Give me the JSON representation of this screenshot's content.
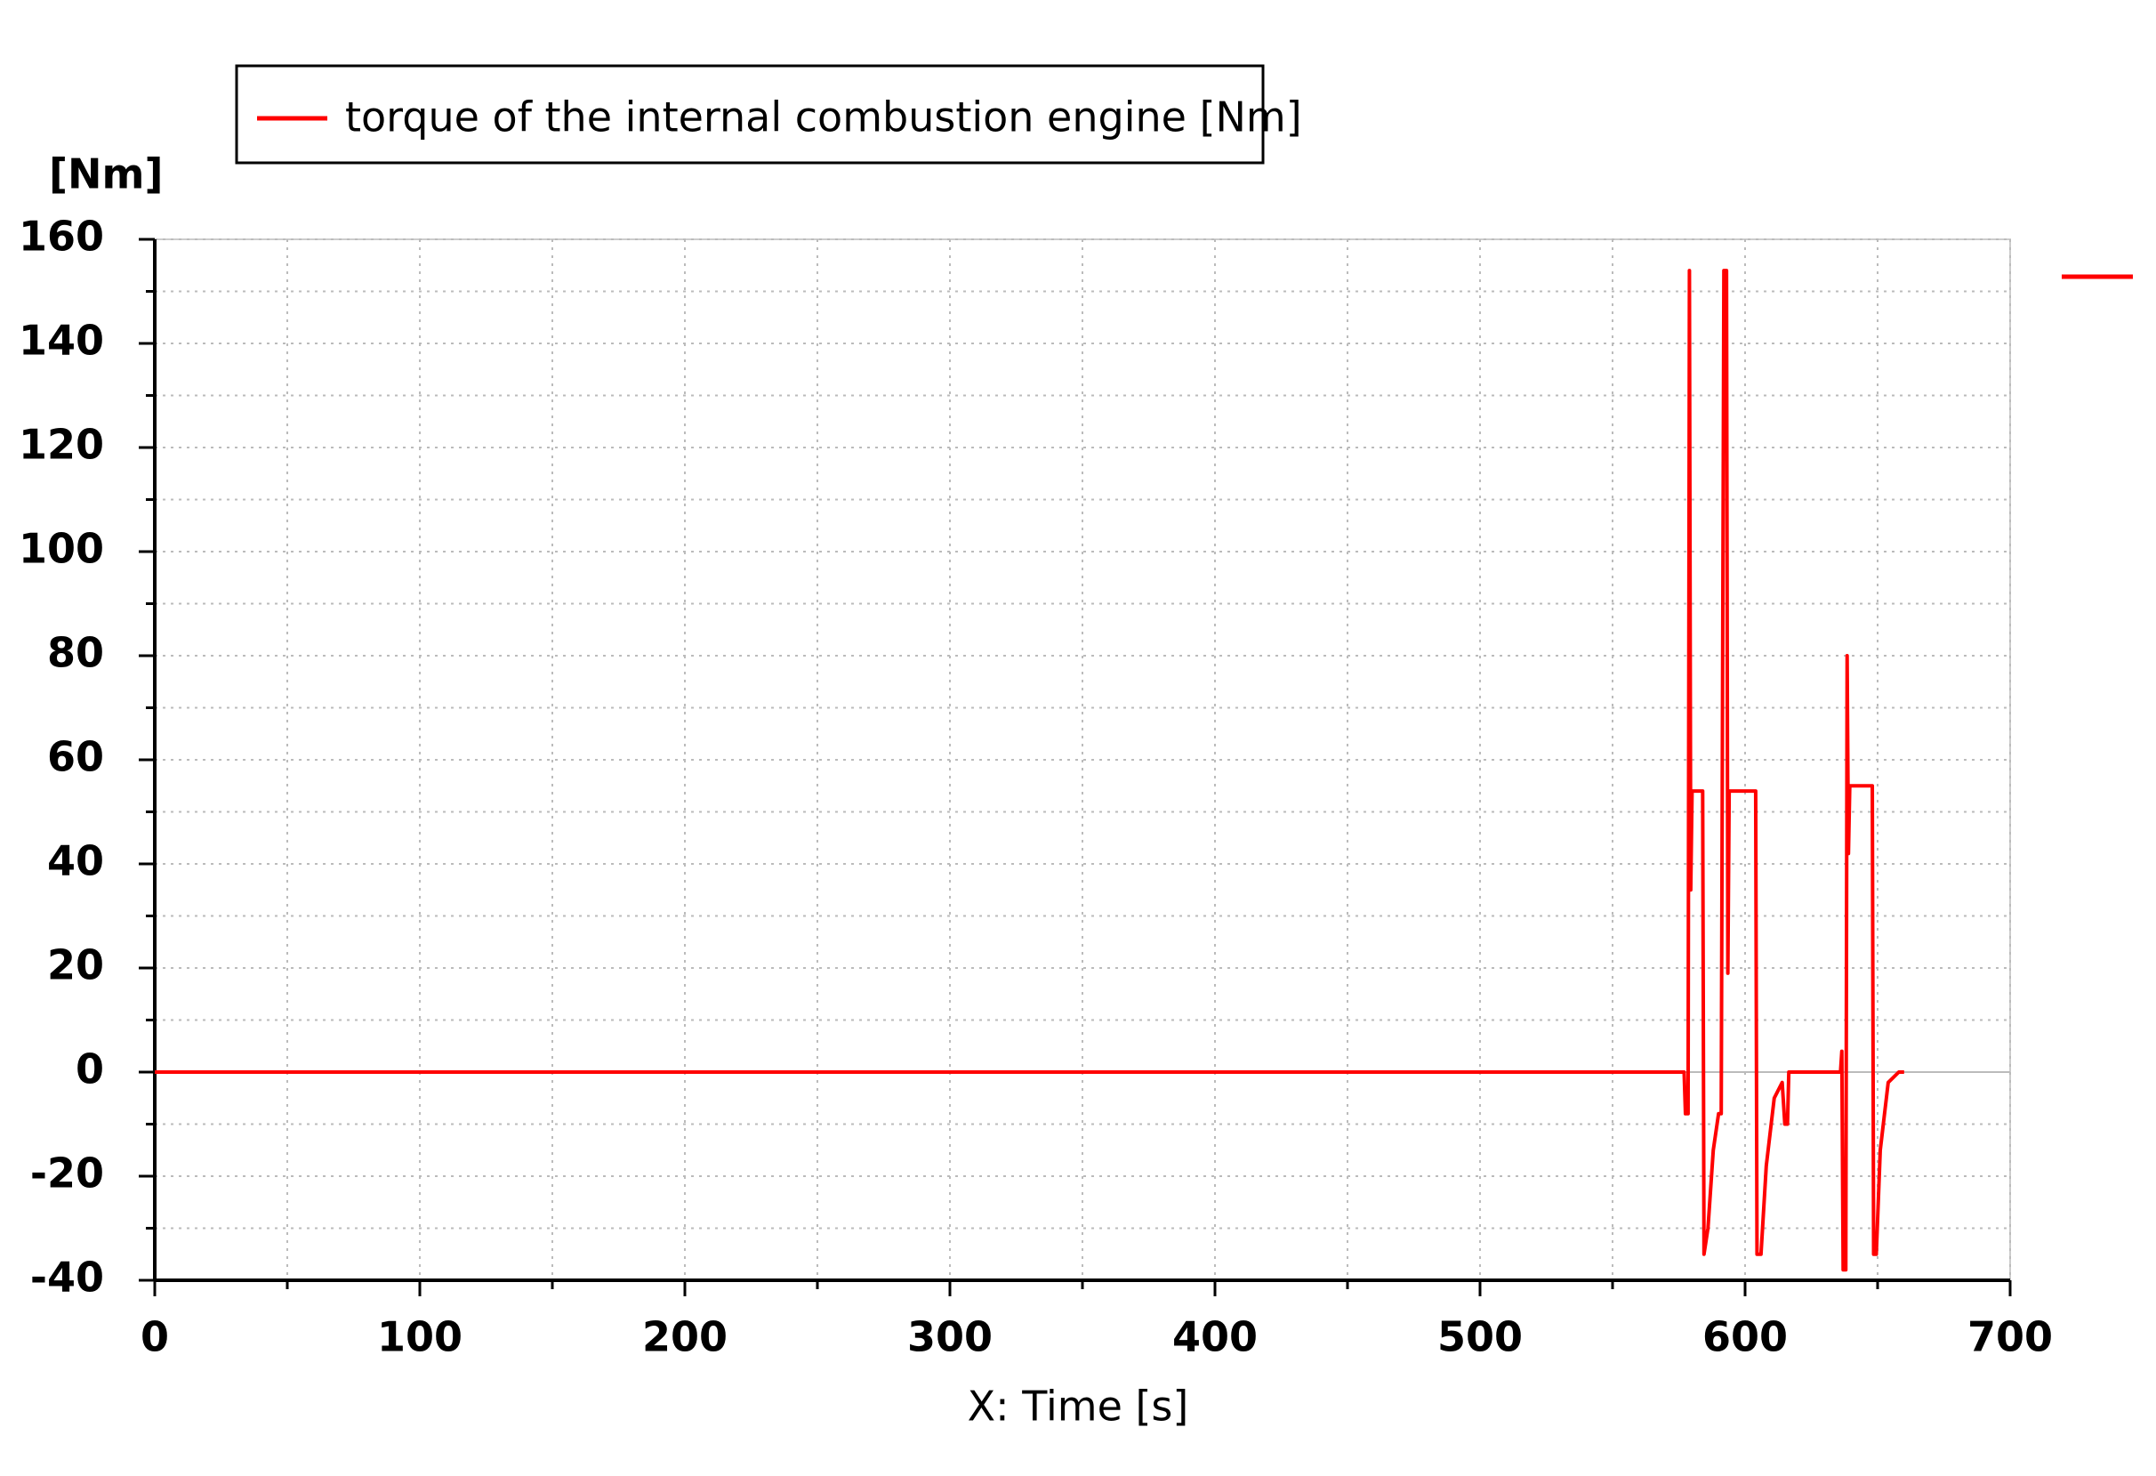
{
  "chart_data": {
    "type": "line",
    "legend_title": null,
    "ylabel": "[Nm]",
    "xlabel": "X: Time [s]",
    "series": [
      {
        "name": "torque of the internal combustion engine  [Nm]",
        "color": "#ff0000",
        "x": [
          0,
          577,
          577.5,
          578.5,
          579,
          579.5,
          580,
          584,
          584.5,
          586,
          588,
          590,
          591,
          592,
          593,
          593.5,
          594,
          604,
          604.5,
          606,
          608,
          611,
          614,
          615,
          616,
          616.5,
          636,
          636.5,
          637,
          638,
          638.5,
          639,
          639.5,
          648,
          648.5,
          649.5,
          651,
          654,
          658,
          660
        ],
        "values": [
          0,
          0,
          -8,
          -8,
          154,
          35,
          54,
          54,
          -35,
          -30,
          -15,
          -8,
          -8,
          154,
          154,
          19,
          54,
          54,
          -35,
          -35,
          -18,
          -5,
          -2,
          -10,
          -10,
          0,
          0,
          4,
          -38,
          -38,
          80,
          42,
          55,
          55,
          -35,
          -35,
          -15,
          -2,
          0,
          0
        ]
      }
    ],
    "xlim": [
      0,
      700
    ],
    "xticks": [
      0,
      100,
      200,
      300,
      400,
      500,
      600,
      700
    ],
    "xminorticks": [
      50,
      150,
      250,
      350,
      450,
      550,
      650
    ],
    "ylim": [
      -40,
      160
    ],
    "yticks": [
      -40,
      -20,
      0,
      20,
      40,
      60,
      80,
      100,
      120,
      140,
      160
    ],
    "yminorticks": [
      -30,
      -10,
      10,
      30,
      50,
      70,
      90,
      110,
      130,
      150
    ],
    "grid": true
  }
}
